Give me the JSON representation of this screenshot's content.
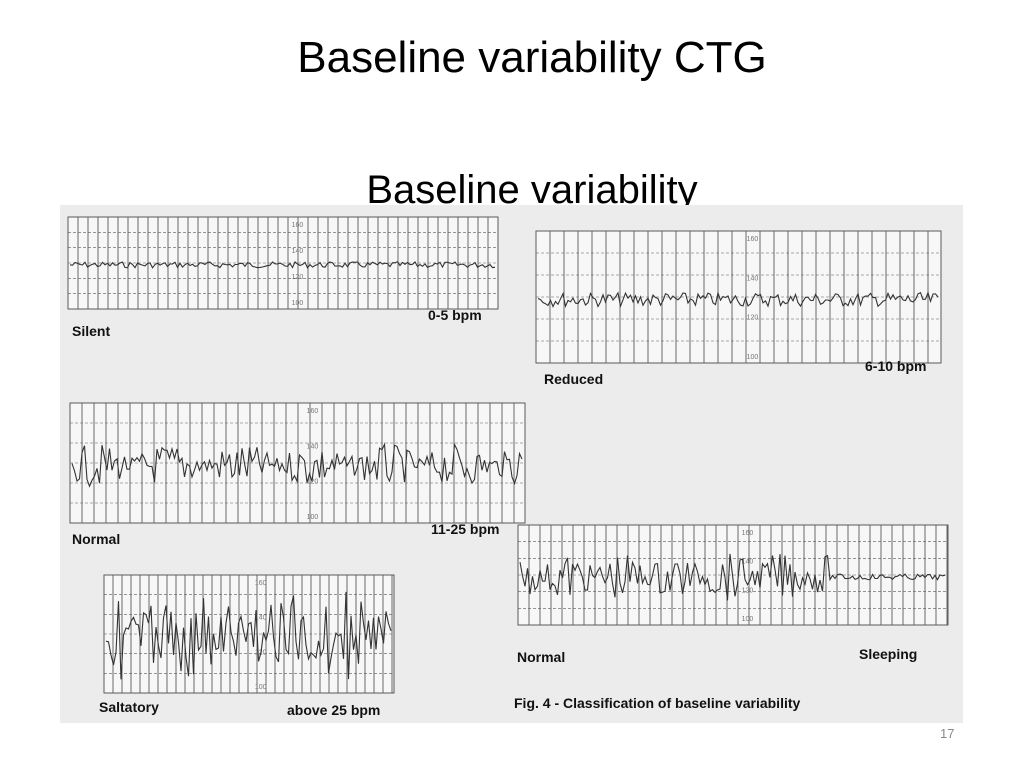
{
  "slide": {
    "title": "Baseline variability CTG",
    "subtitle": "Baseline variability",
    "page_number": "17"
  },
  "figure": {
    "caption": "Fig. 4 - Classification of baseline variability",
    "panels": [
      {
        "id": "silent",
        "category": "Silent",
        "range": "0-5 bpm"
      },
      {
        "id": "reduced",
        "category": "Reduced",
        "range": "6-10 bpm"
      },
      {
        "id": "normal",
        "category": "Normal",
        "range": "11-25 bpm"
      },
      {
        "id": "saltatory",
        "category": "Saltatory",
        "range": "above 25 bpm"
      },
      {
        "id": "sleeping",
        "category": "Normal",
        "range": "Sleeping"
      }
    ],
    "scale_marks": [
      "160",
      "140",
      "120",
      "100"
    ]
  },
  "colors": {
    "grid_line": "#5a5a5a",
    "trace": "#333333",
    "figure_bg": "#ececec",
    "paper": "#f7f7f7"
  }
}
